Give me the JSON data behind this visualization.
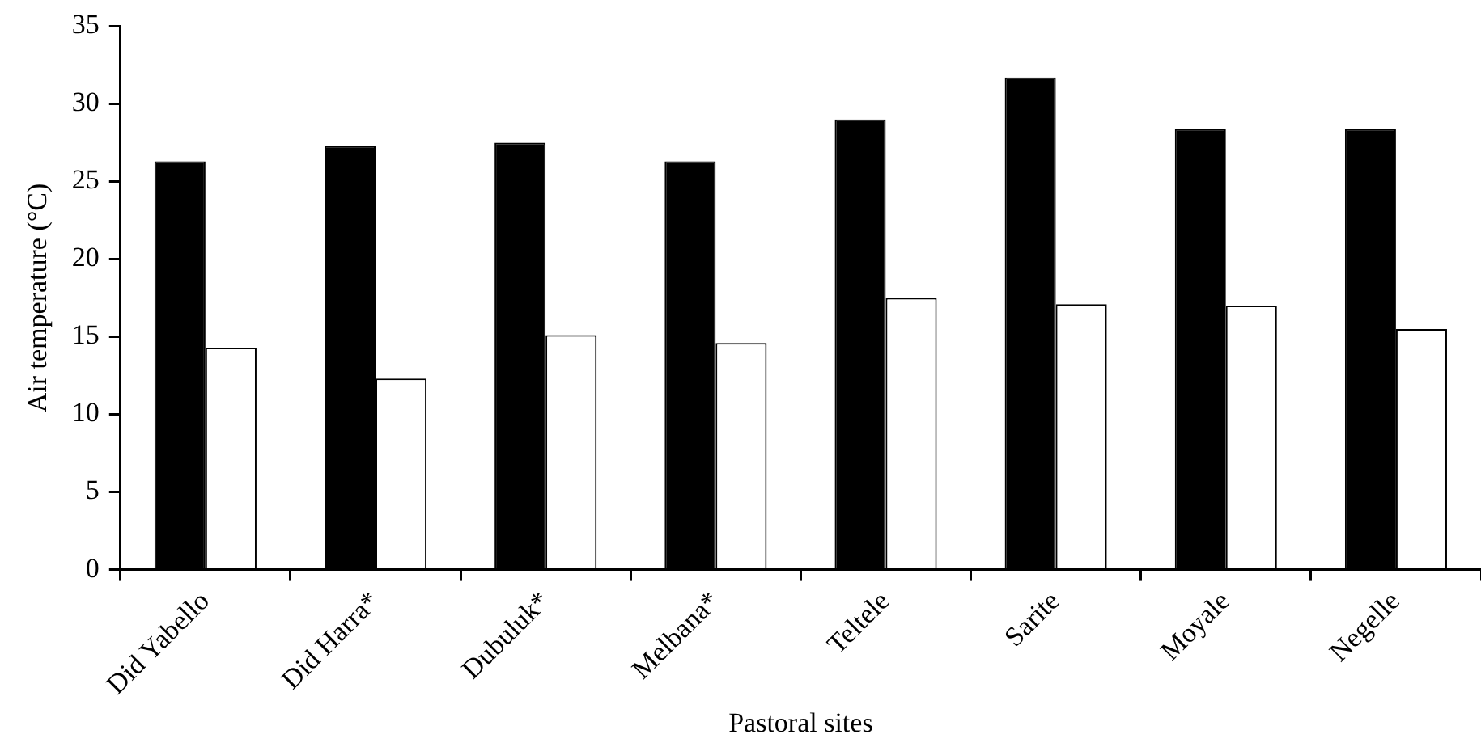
{
  "chart_data": {
    "type": "bar",
    "xlabel": "Pastoral sites",
    "ylabel": "Air temperature (°C)",
    "categories": [
      "Did Yabello",
      "Did Harra*",
      "Dubuluk*",
      "Melbana*",
      "Teltele",
      "Sarite",
      "Moyale",
      "Negelle"
    ],
    "series": [
      {
        "color": "#000000",
        "values": [
          26.3,
          27.3,
          27.5,
          26.3,
          29.0,
          31.7,
          28.4,
          28.4
        ]
      },
      {
        "color": "#ffffff",
        "values": [
          14.3,
          12.3,
          15.1,
          14.6,
          17.5,
          17.1,
          17.0,
          15.5
        ]
      }
    ],
    "ylim": [
      0,
      35
    ],
    "yticks": [
      0,
      5,
      10,
      15,
      20,
      25,
      30,
      35
    ],
    "grid": false,
    "legend": false
  }
}
